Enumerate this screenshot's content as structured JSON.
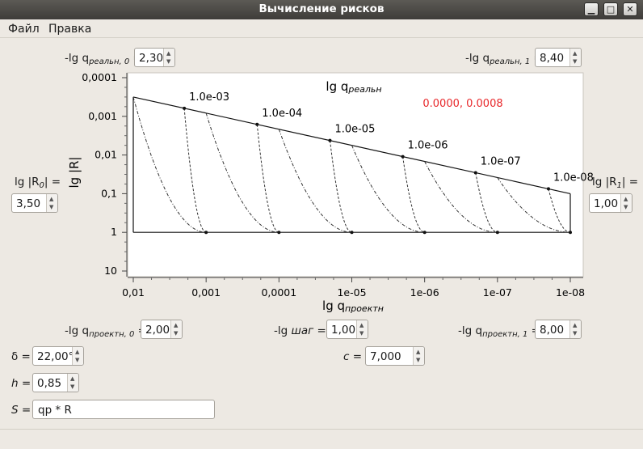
{
  "window": {
    "title": "Вычисление рисков"
  },
  "menu": {
    "file": "Файл",
    "edit": "Правка"
  },
  "top": {
    "q0_label": "-lg q",
    "q0_sub": "реальн, 0",
    "q0_eq": " =",
    "q0_value": "2,30",
    "q1_label": "-lg q",
    "q1_sub": "реальн, 1",
    "q1_eq": " =",
    "q1_value": "8,40"
  },
  "side": {
    "r0_label": "lg |R",
    "r0_sub": "0",
    "r0_eq": "| =",
    "r0_value": "3,50",
    "r1_label": "lg |R",
    "r1_sub": "1",
    "r1_eq": "| =",
    "r1_value": "1,00"
  },
  "chart_data": {
    "type": "line",
    "title": "lg q",
    "title_sub": "реальн",
    "xlabel": "lg q",
    "xlabel_sub": "проектн",
    "ylabel": "lg |R|",
    "cursor_readout": "0.0000, 0.0008",
    "x_ticks": [
      "0,01",
      "0,001",
      "0,0001",
      "1e-05",
      "1e-06",
      "1e-07",
      "1e-08"
    ],
    "y_ticks": [
      "0,0001",
      "0,001",
      "0,01",
      "0,1",
      "1",
      "10"
    ],
    "xlim": [
      2,
      8
    ],
    "ylim": [
      -4,
      1
    ],
    "envelope": [
      [
        2,
        -3.5
      ],
      [
        8,
        -1
      ]
    ],
    "baseline": 0,
    "curve_labels": [
      {
        "text": "1.0e-03",
        "x": 2.7,
        "y": -3.2
      },
      {
        "text": "1.0e-04",
        "x": 3.7,
        "y": -2.8
      },
      {
        "text": "1.0e-05",
        "x": 4.7,
        "y": -2.4
      },
      {
        "text": "1.0e-06",
        "x": 5.7,
        "y": -2.0
      },
      {
        "text": "1.0e-07",
        "x": 6.7,
        "y": -1.6
      },
      {
        "text": "1.0e-08",
        "x": 7.7,
        "y": -1.2
      }
    ],
    "curve_minima": [
      3,
      4,
      5,
      6,
      7,
      8
    ],
    "grid": false
  },
  "bottom": {
    "p0_label": "-lg q",
    "p0_sub": "проектн, 0",
    "p0_eq": " =",
    "p0_value": "2,00",
    "step_label": "-lg ",
    "step_italic": "шаг",
    "step_eq": " =",
    "step_value": "1,00",
    "p1_label": "-lg q",
    "p1_sub": "проектн, 1",
    "p1_eq": " =",
    "p1_value": "8,00",
    "delta_label": "δ =",
    "delta_value": "22,00°",
    "c_label": "c =",
    "c_value": "7,000",
    "h_label": "h =",
    "h_value": "0,85",
    "s_label": "S =",
    "s_value": "qp * R"
  }
}
